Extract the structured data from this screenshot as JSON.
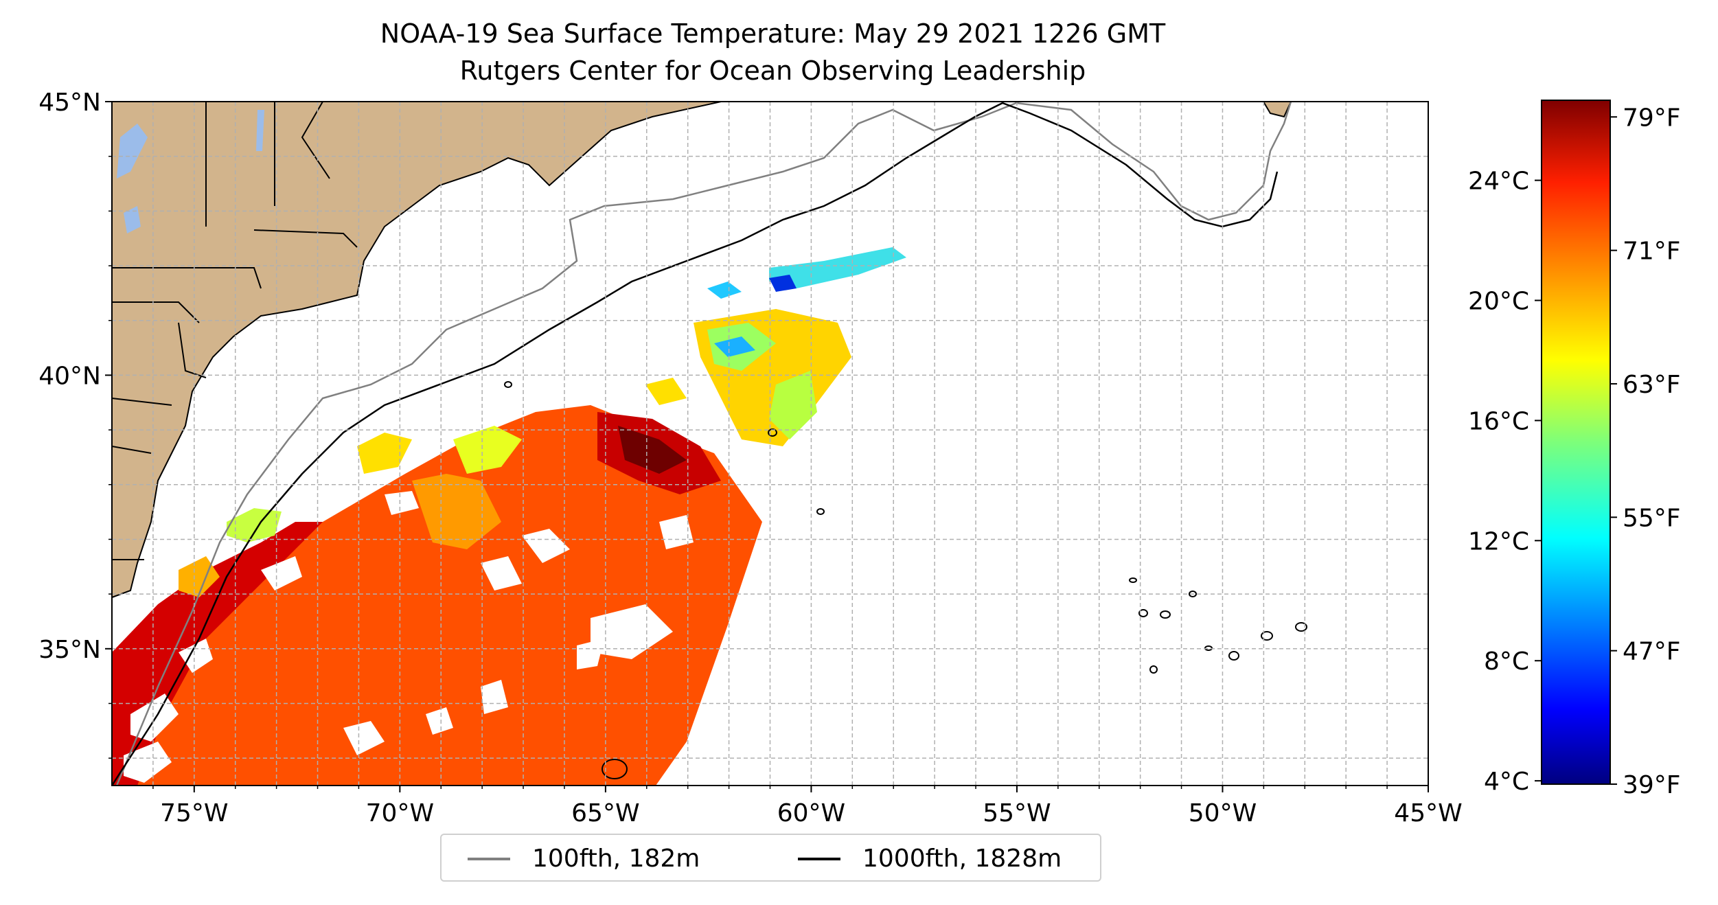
{
  "title": "NOAA-19 Sea Surface Temperature: May 29 2021 1226 GMT",
  "subtitle": "Rutgers Center for Ocean Observing Leadership",
  "map": {
    "lon_range": [
      -77,
      -45
    ],
    "lat_range": [
      32.5,
      45
    ],
    "x_ticks": [
      "75°W",
      "70°W",
      "65°W",
      "60°W",
      "55°W",
      "50°W",
      "45°W"
    ],
    "y_ticks": [
      "45°N",
      "40°N",
      "35°N"
    ],
    "gridlines": true,
    "land_color": "#d2b48c",
    "water_color": "#9bbcea",
    "colormap": "jet"
  },
  "legend": {
    "placement": "bottom-center",
    "items": [
      {
        "label": "100fth, 182m",
        "color": "#808080"
      },
      {
        "label": "1000fth, 1828m",
        "color": "#000000"
      }
    ]
  },
  "colorbar": {
    "celsius_ticks": [
      "24°C",
      "20°C",
      "16°C",
      "12°C",
      "8°C",
      "4°C"
    ],
    "fahrenheit_ticks": [
      "79°F",
      "71°F",
      "63°F",
      "55°F",
      "47°F",
      "39°F"
    ],
    "range_f": [
      39,
      80
    ]
  }
}
